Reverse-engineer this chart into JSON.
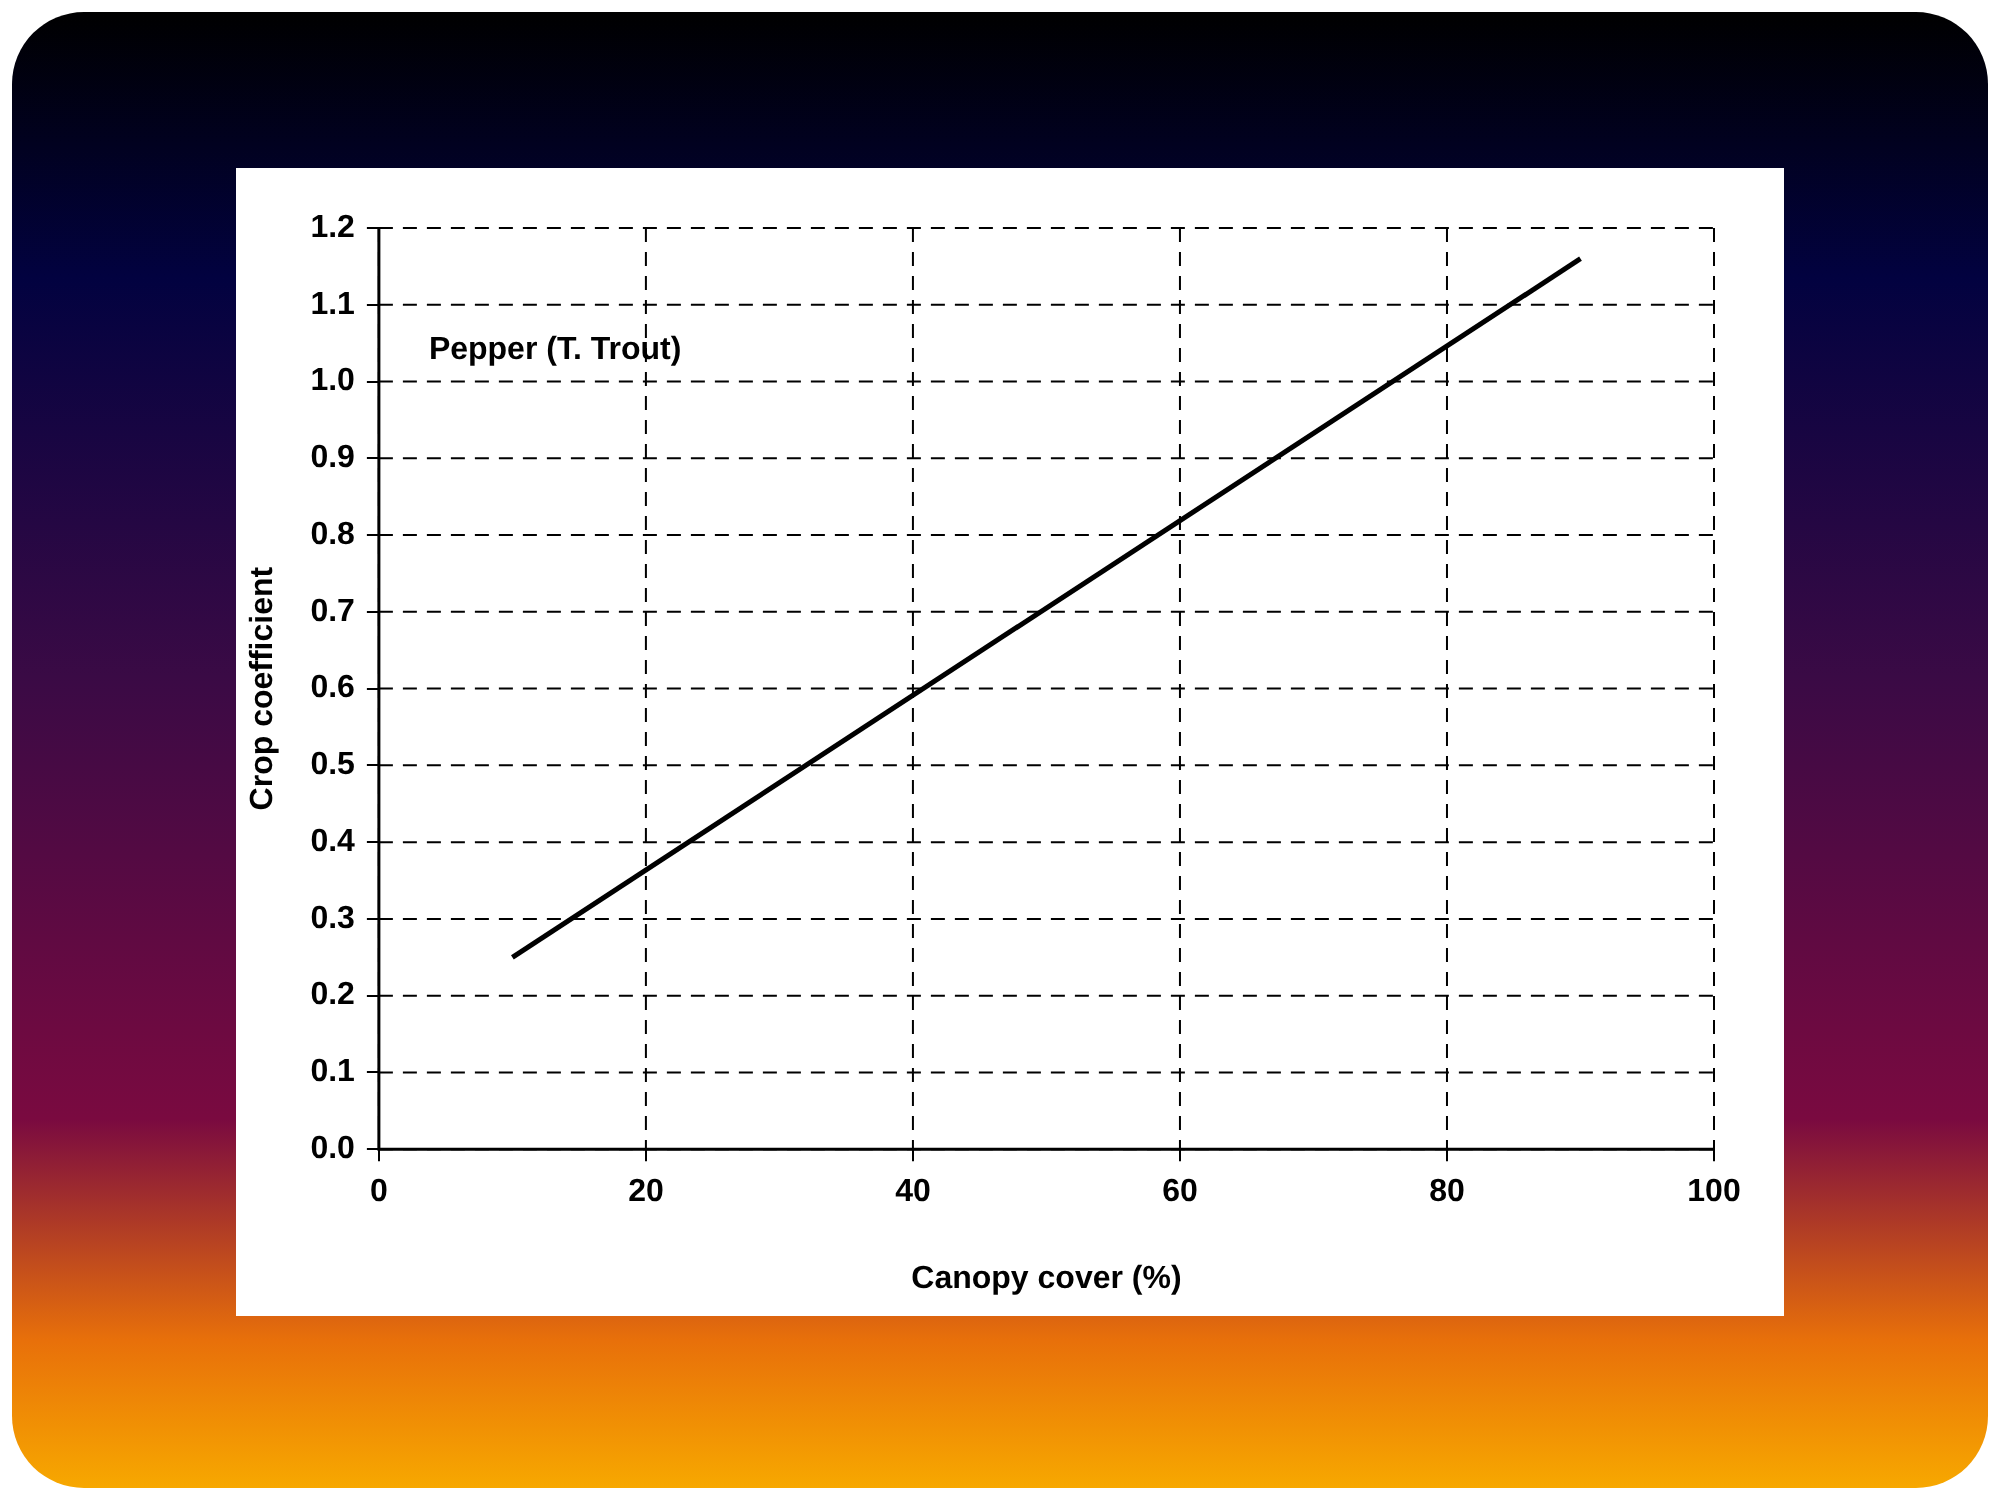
{
  "chart_data": {
    "type": "line",
    "xlabel": "Canopy cover (%)",
    "ylabel": "Crop coefficient",
    "annotations": [
      "Pepper (T. Trout)"
    ],
    "x": [
      10,
      90
    ],
    "series": [
      {
        "color": "#000000",
        "values": [
          0.25,
          1.16
        ]
      }
    ],
    "xlim": [
      0,
      100
    ],
    "xticks": [
      0,
      20,
      40,
      60,
      80,
      100
    ],
    "ylim": [
      0,
      1.2
    ],
    "yticks": [
      {
        "value": 0,
        "label": "0.0"
      },
      {
        "value": 0.1,
        "label": "0.1"
      },
      {
        "value": 0.2,
        "label": "0.2"
      },
      {
        "value": 0.3,
        "label": "0.3"
      },
      {
        "value": 0.4,
        "label": "0.4"
      },
      {
        "value": 0.5,
        "label": "0.5"
      },
      {
        "value": 0.6,
        "label": "0.6"
      },
      {
        "value": 0.7,
        "label": "0.7"
      },
      {
        "value": 0.8,
        "label": "0.8"
      },
      {
        "value": 0.9,
        "label": "0.9"
      },
      {
        "value": 1.0,
        "label": "1.0"
      },
      {
        "value": 1.1,
        "label": "1.1"
      },
      {
        "value": 1.2,
        "label": "1.2"
      }
    ],
    "grid": true,
    "legend": false,
    "marker": "none",
    "line_style": "solid"
  }
}
